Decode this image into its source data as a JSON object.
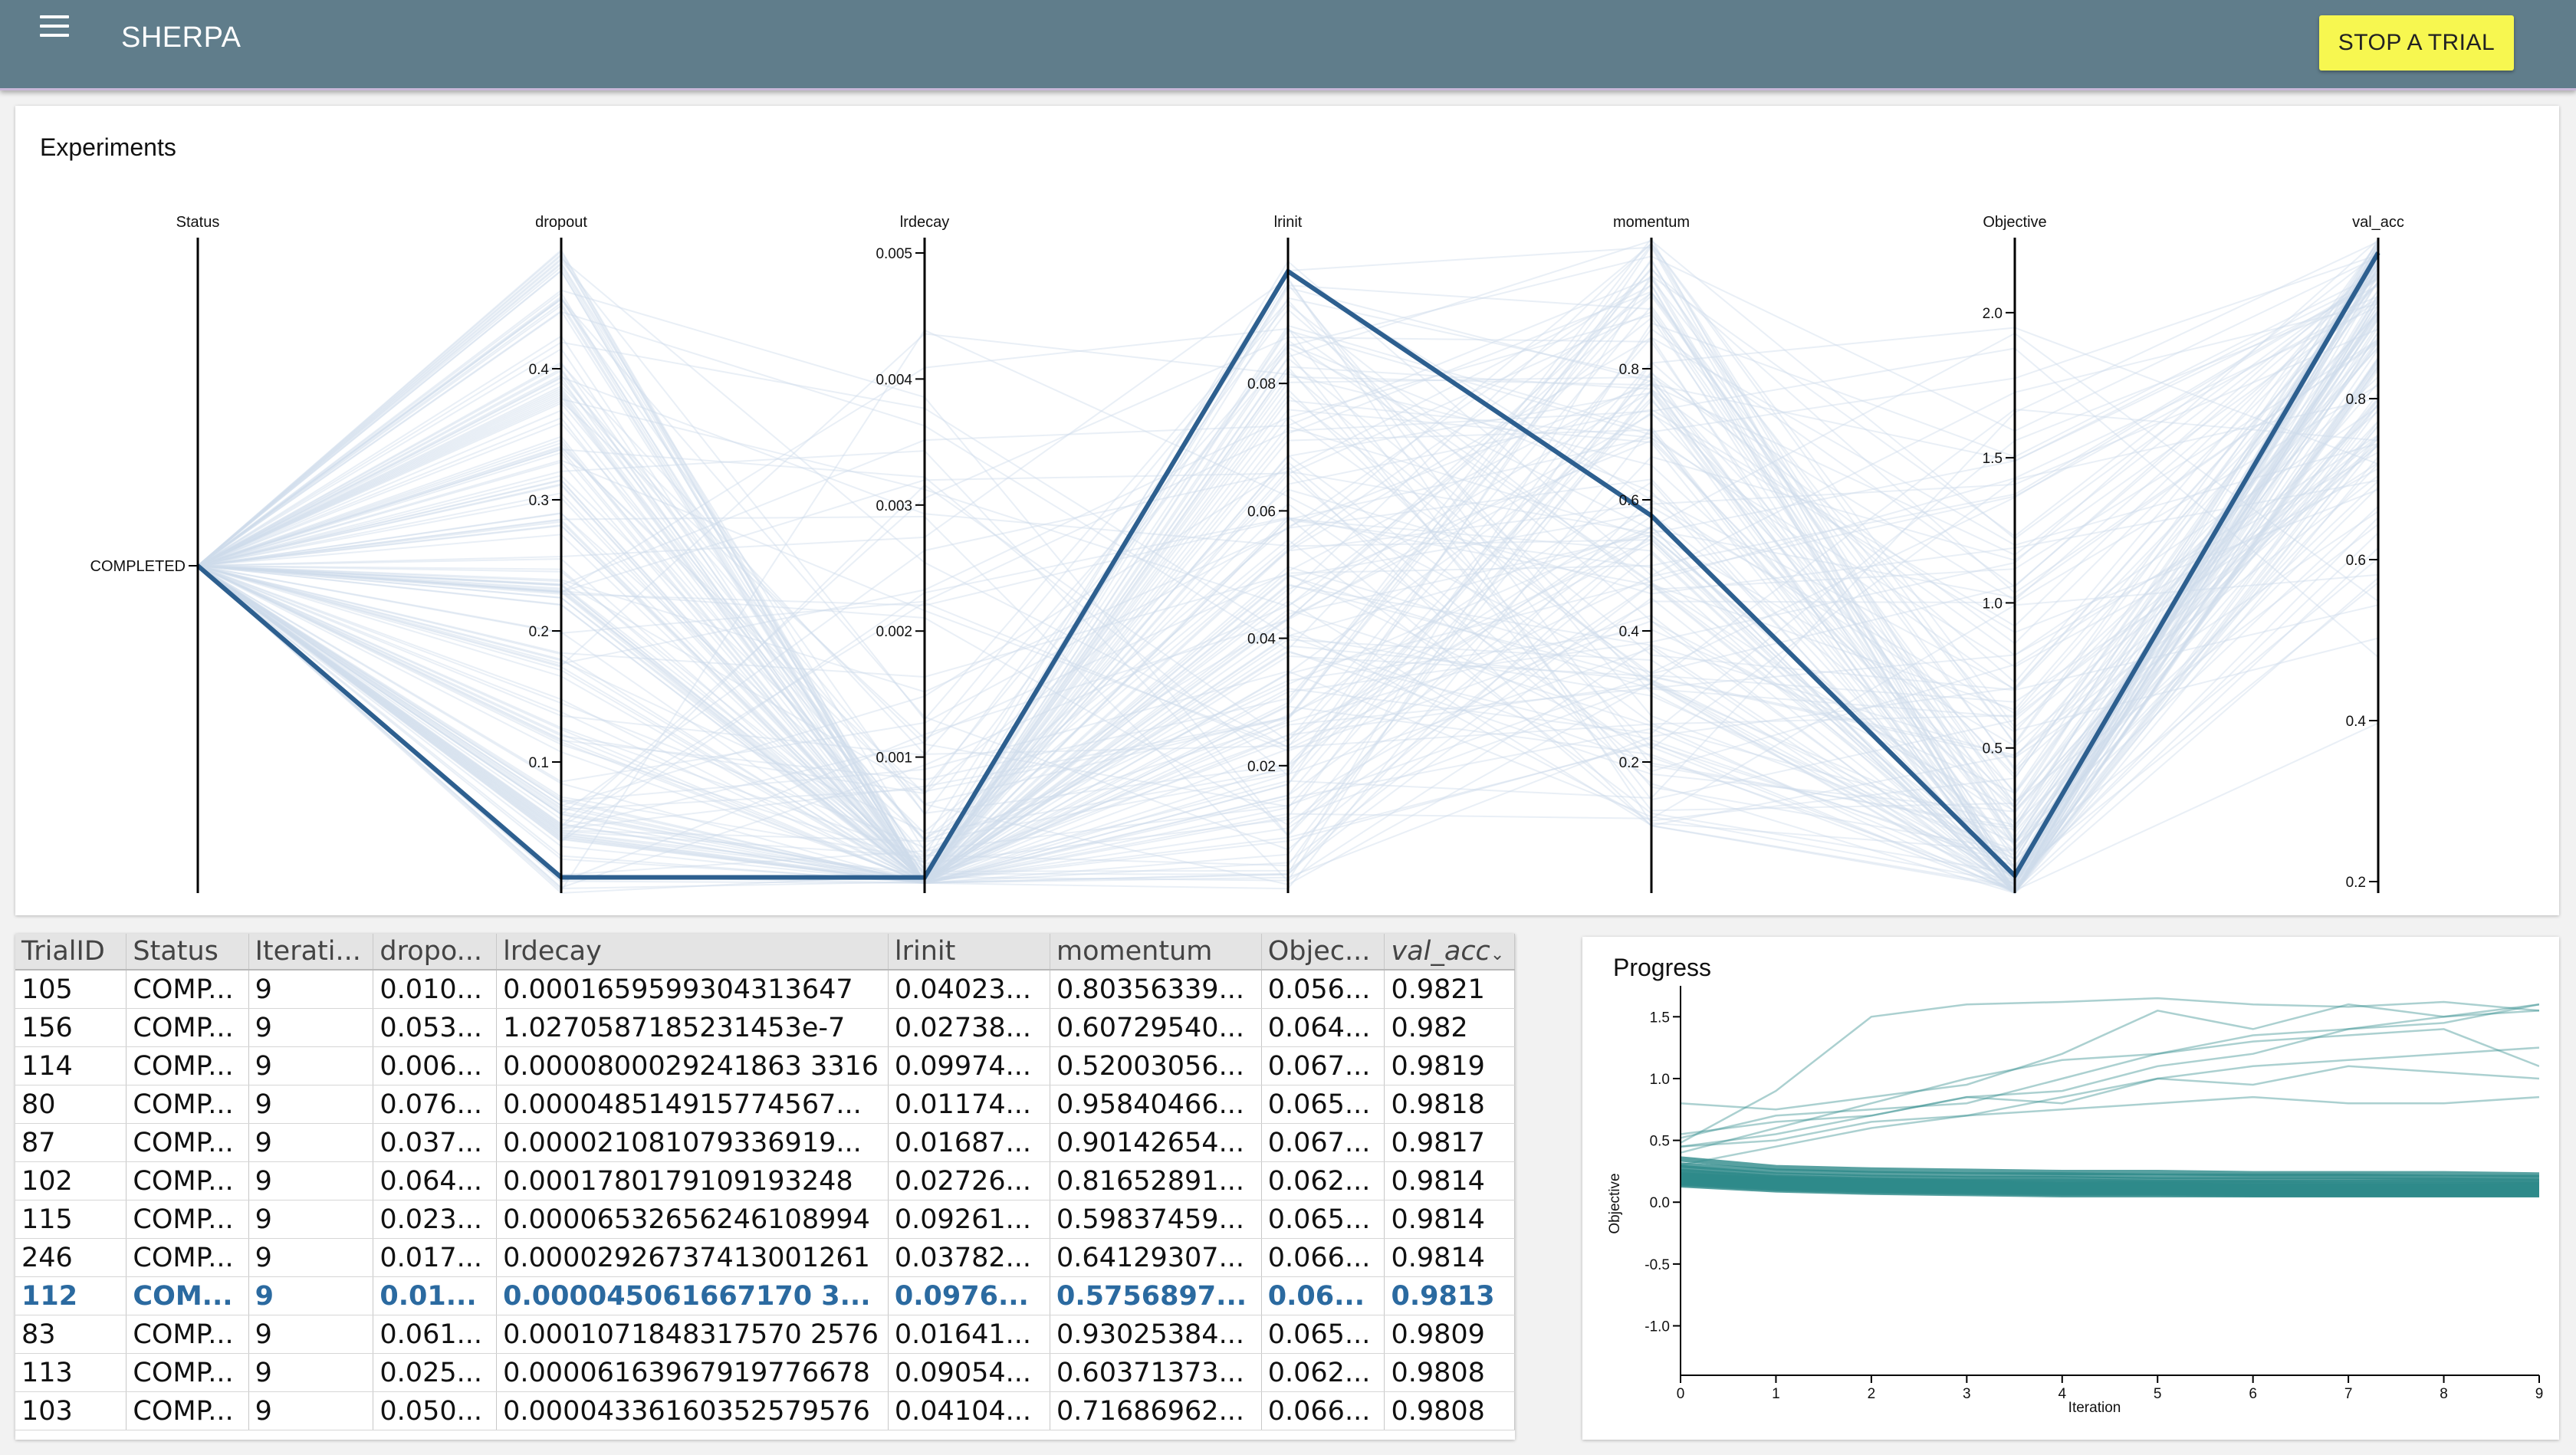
{
  "app": {
    "title": "SHERPA",
    "stop_button": "STOP A TRIAL"
  },
  "experiments": {
    "title": "Experiments",
    "axes": [
      {
        "name": "Status",
        "categories": [
          "COMPLETED"
        ]
      },
      {
        "name": "dropout",
        "min": 0,
        "max": 0.5,
        "ticks": [
          "0.1",
          "0.2",
          "0.3",
          "0.4"
        ],
        "tick_values": [
          0.1,
          0.2,
          0.3,
          0.4
        ]
      },
      {
        "name": "lrdecay",
        "min": 0,
        "max": 0.005,
        "ticks": [
          "0.001",
          "0.002",
          "0.003",
          "0.004",
          "0.005"
        ],
        "tick_values": [
          0.001,
          0.002,
          0.003,
          0.004,
          0.005
        ]
      },
      {
        "name": "lrinit",
        "min": 0,
        "max": 0.1,
        "ticks": [
          "0.02",
          "0.04",
          "0.06",
          "0.08"
        ],
        "tick_values": [
          0.02,
          0.04,
          0.06,
          0.08
        ]
      },
      {
        "name": "momentum",
        "min": 0,
        "max": 1,
        "ticks": [
          "0.2",
          "0.4",
          "0.6",
          "0.8"
        ],
        "tick_values": [
          0.2,
          0.4,
          0.6,
          0.8
        ]
      },
      {
        "name": "Objective",
        "min": 0,
        "max": 2.1,
        "ticks": [
          "0.5",
          "1.0",
          "1.5",
          "2.0"
        ],
        "tick_values": [
          0.5,
          1.0,
          1.5,
          2.0
        ]
      },
      {
        "name": "val_acc",
        "min": 0.2,
        "max": 1.0,
        "ticks": [
          "0.2",
          "0.4",
          "0.6",
          "0.8"
        ],
        "tick_values": [
          0.2,
          0.4,
          0.6,
          0.8
        ]
      }
    ],
    "highlight_color": "#2d5f8f",
    "background_line_color": "#cfdcea"
  },
  "chart_data": {
    "type": "line",
    "title": "Progress",
    "xlabel": "Iteration",
    "ylabel": "Objective",
    "x": [
      0,
      1,
      2,
      3,
      4,
      5,
      6,
      7,
      8,
      9
    ],
    "xlim": [
      0,
      9
    ],
    "ylim": [
      -1.4,
      1.75
    ],
    "x_ticks": [
      "0",
      "1",
      "2",
      "3",
      "4",
      "5",
      "6",
      "7",
      "8",
      "9"
    ],
    "y_ticks": [
      "1.5",
      "1.0",
      "0.5",
      "0.0",
      "-0.5",
      "-1.0"
    ],
    "y_tick_values": [
      1.5,
      1.0,
      0.5,
      0.0,
      -0.5,
      -1.0
    ],
    "line_color": "#2e8a8a",
    "series": [
      {
        "values": [
          0.52,
          0.7,
          0.75,
          0.8,
          1.0,
          1.2,
          1.35,
          1.4,
          1.5,
          1.6
        ]
      },
      {
        "values": [
          0.48,
          0.9,
          1.5,
          1.6,
          1.62,
          1.65,
          1.6,
          1.58,
          1.62,
          1.55
        ]
      },
      {
        "values": [
          0.45,
          0.55,
          0.7,
          0.85,
          0.9,
          1.1,
          1.2,
          1.4,
          1.45,
          1.6
        ]
      },
      {
        "values": [
          0.4,
          0.6,
          0.8,
          1.0,
          1.15,
          1.2,
          1.3,
          1.35,
          1.4,
          1.1
        ]
      },
      {
        "values": [
          0.55,
          0.65,
          0.7,
          0.85,
          0.8,
          1.0,
          0.95,
          1.1,
          1.05,
          1.0
        ]
      },
      {
        "values": [
          0.8,
          0.75,
          0.85,
          0.95,
          1.2,
          1.55,
          1.4,
          1.6,
          1.5,
          1.55
        ]
      },
      {
        "values": [
          0.45,
          0.5,
          0.65,
          0.7,
          0.75,
          0.8,
          0.85,
          0.8,
          0.8,
          0.85
        ]
      },
      {
        "values": [
          0.3,
          0.45,
          0.6,
          0.7,
          0.85,
          1.0,
          1.1,
          1.15,
          1.2,
          1.25
        ]
      },
      {
        "values": [
          0.35,
          0.28,
          0.26,
          0.25,
          0.24,
          0.24,
          0.23,
          0.23,
          0.23,
          0.22
        ]
      },
      {
        "values": [
          0.3,
          0.25,
          0.23,
          0.22,
          0.22,
          0.21,
          0.21,
          0.21,
          0.2,
          0.2
        ]
      },
      {
        "values": [
          0.28,
          0.22,
          0.2,
          0.19,
          0.19,
          0.18,
          0.18,
          0.18,
          0.18,
          0.17
        ]
      },
      {
        "values": [
          0.25,
          0.2,
          0.18,
          0.17,
          0.17,
          0.16,
          0.16,
          0.16,
          0.16,
          0.16
        ]
      },
      {
        "values": [
          0.24,
          0.19,
          0.17,
          0.16,
          0.15,
          0.15,
          0.15,
          0.14,
          0.14,
          0.14
        ]
      },
      {
        "values": [
          0.22,
          0.18,
          0.16,
          0.15,
          0.14,
          0.14,
          0.13,
          0.13,
          0.13,
          0.13
        ]
      },
      {
        "values": [
          0.21,
          0.17,
          0.15,
          0.14,
          0.13,
          0.13,
          0.12,
          0.12,
          0.12,
          0.12
        ]
      },
      {
        "values": [
          0.2,
          0.16,
          0.14,
          0.13,
          0.12,
          0.12,
          0.11,
          0.11,
          0.11,
          0.11
        ]
      },
      {
        "values": [
          0.19,
          0.15,
          0.13,
          0.12,
          0.11,
          0.11,
          0.1,
          0.1,
          0.1,
          0.1
        ]
      },
      {
        "values": [
          0.18,
          0.14,
          0.12,
          0.11,
          0.1,
          0.1,
          0.09,
          0.09,
          0.09,
          0.09
        ]
      },
      {
        "values": [
          0.17,
          0.13,
          0.11,
          0.1,
          0.09,
          0.09,
          0.08,
          0.08,
          0.08,
          0.08
        ]
      },
      {
        "values": [
          0.16,
          0.12,
          0.1,
          0.09,
          0.08,
          0.08,
          0.07,
          0.07,
          0.07,
          0.07
        ]
      },
      {
        "values": [
          0.15,
          0.11,
          0.09,
          0.08,
          0.07,
          0.07,
          0.06,
          0.06,
          0.06,
          0.06
        ]
      },
      {
        "values": [
          0.14,
          0.1,
          0.08,
          0.07,
          0.06,
          0.06,
          0.06,
          0.06,
          0.06,
          0.06
        ]
      }
    ]
  },
  "table": {
    "columns": [
      "TrialID",
      "Status",
      "Iterati...",
      "dropo...",
      "lrdecay",
      "lrinit",
      "momentum",
      "Objec...",
      "val_acc"
    ],
    "sort_indicator": "⌄",
    "selected_row": 8,
    "rows": [
      [
        "105",
        "COMP...",
        "9",
        "0.010...",
        "0.0001659599304313647",
        "0.04023...",
        "0.80356339...",
        "0.056...",
        "0.9821"
      ],
      [
        "156",
        "COMP...",
        "9",
        "0.053...",
        "1.0270587185231453e-7",
        "0.02738...",
        "0.60729540...",
        "0.064...",
        "0.982"
      ],
      [
        "114",
        "COMP...",
        "9",
        "0.006...",
        "0.0000800029241863 3316",
        "0.09974...",
        "0.52003056...",
        "0.067...",
        "0.9819"
      ],
      [
        "80",
        "COMP...",
        "9",
        "0.076...",
        "0.000048514915774567...",
        "0.01174...",
        "0.95840466...",
        "0.065...",
        "0.9818"
      ],
      [
        "87",
        "COMP...",
        "9",
        "0.037...",
        "0.000021081079336919...",
        "0.01687...",
        "0.90142654...",
        "0.067...",
        "0.9817"
      ],
      [
        "102",
        "COMP...",
        "9",
        "0.064...",
        "0.0001780179109193248",
        "0.02726...",
        "0.81652891...",
        "0.062...",
        "0.9814"
      ],
      [
        "115",
        "COMP...",
        "9",
        "0.023...",
        "0.00006532656246108994",
        "0.09261...",
        "0.59837459...",
        "0.065...",
        "0.9814"
      ],
      [
        "246",
        "COMP...",
        "9",
        "0.017...",
        "0.00002926737413001261",
        "0.03782...",
        "0.64129307...",
        "0.066...",
        "0.9814"
      ],
      [
        "112",
        "COM...",
        "9",
        "0.01...",
        "0.000045061667170 3...",
        "0.0976...",
        "0.5756897...",
        "0.06...",
        "0.9813"
      ],
      [
        "83",
        "COMP...",
        "9",
        "0.061...",
        "0.0001071848317570 2576",
        "0.01641...",
        "0.93025384...",
        "0.065...",
        "0.9809"
      ],
      [
        "113",
        "COMP...",
        "9",
        "0.025...",
        "0.00006163967919776678",
        "0.09054...",
        "0.60371373...",
        "0.062...",
        "0.9808"
      ],
      [
        "103",
        "COMP...",
        "9",
        "0.050...",
        "0.00004336160352579576",
        "0.04104...",
        "0.71686962...",
        "0.066...",
        "0.9808"
      ]
    ]
  }
}
